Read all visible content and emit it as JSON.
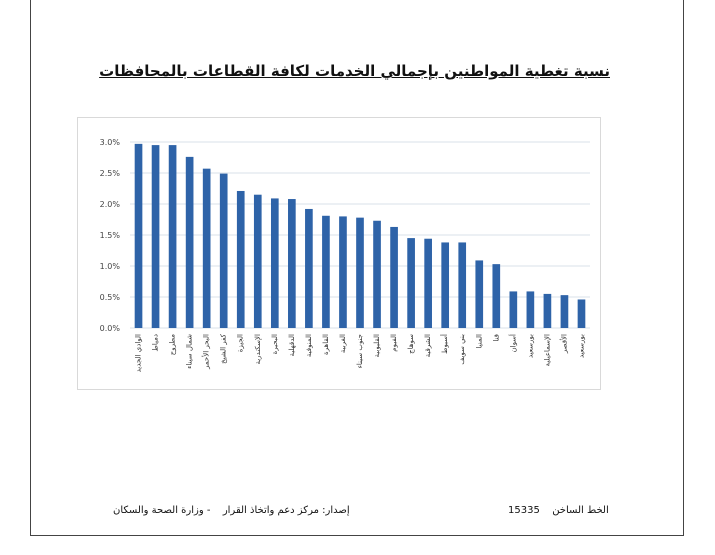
{
  "page": {
    "title": "نسبة تغطية المواطنين بإجمالي الخدمات لكافة القطاعات بالمحافظات"
  },
  "footer": {
    "hotline_label": "الخط الساخن",
    "hotline_number": "15335",
    "issuer_label": "إصدار: مركز دعم واتخاذ القرار",
    "ministry": "- وزارة الصحة والسكان"
  },
  "chart_data": {
    "type": "bar",
    "title": "",
    "xlabel": "",
    "ylabel": "",
    "ylim": [
      0,
      3.0
    ],
    "yticks": [
      "0.0%",
      "0.5%",
      "1.0%",
      "1.5%",
      "2.0%",
      "2.5%",
      "3.0%"
    ],
    "grid": true,
    "bar_color": "#2e63a8",
    "grid_color": "#d9e1ea",
    "categories": [
      "الوادي الجديد",
      "دمياط",
      "مطروح",
      "شمال سيناء",
      "البحر الأحمر",
      "كفر الشيخ",
      "الجيزة",
      "الإسكندرية",
      "البحيرة",
      "الدقهلية",
      "المنوفية",
      "القاهرة",
      "الغربية",
      "جنوب سيناء",
      "القليوبية",
      "الفيوم",
      "سوهاج",
      "الشرقية",
      "أسيوط",
      "بني سويف",
      "المنيا",
      "قنا",
      "أسوان",
      "بورسعيد",
      "الإسماعيلية",
      "الأقصر",
      "بورسعيد"
    ],
    "values": [
      2.97,
      2.95,
      2.95,
      2.76,
      2.57,
      2.49,
      2.21,
      2.15,
      2.09,
      2.08,
      1.92,
      1.81,
      1.8,
      1.78,
      1.73,
      1.63,
      1.45,
      1.44,
      1.38,
      1.38,
      1.09,
      1.03,
      0.59,
      0.59,
      0.55,
      0.53,
      0.46
    ]
  }
}
